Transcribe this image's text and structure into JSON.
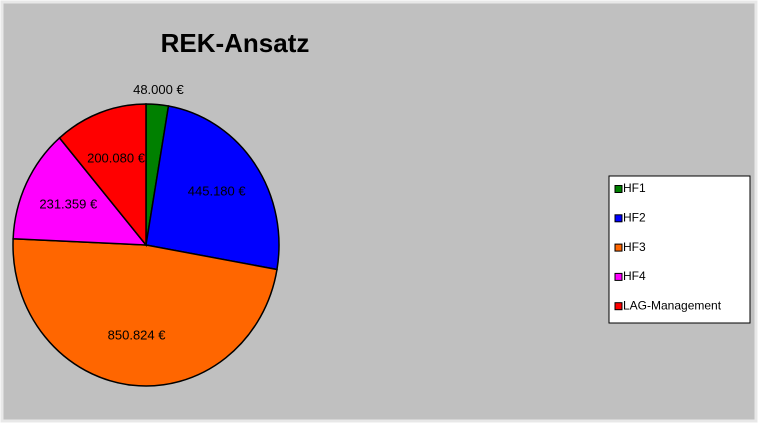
{
  "chart_data": {
    "type": "pie",
    "title": "REK-Ansatz",
    "categories": [
      "HF1",
      "HF2",
      "HF3",
      "HF4",
      "LAG-Management"
    ],
    "values": [
      48000,
      445180,
      850824,
      231359,
      200080
    ],
    "value_labels": [
      "48.000 €",
      "445.180 €",
      "850.824 €",
      "231.359 €",
      "200.080 €"
    ],
    "colors": [
      "#008000",
      "#0000ff",
      "#ff6600",
      "#ff00ff",
      "#ff0000"
    ],
    "legend": "right"
  }
}
